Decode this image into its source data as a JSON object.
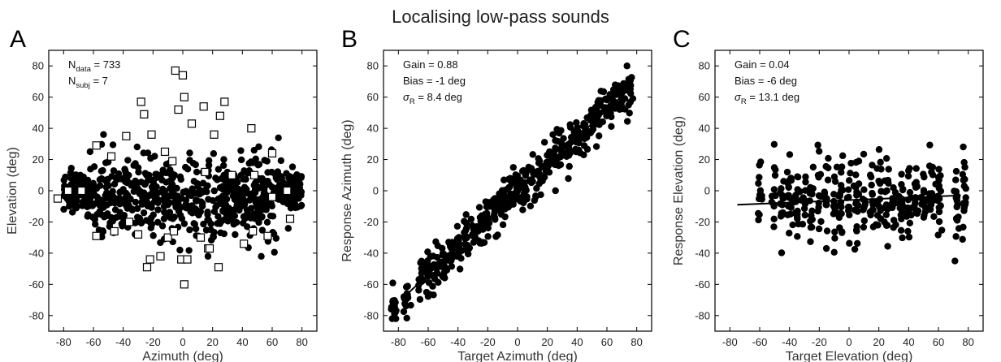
{
  "title": "Localising low-pass sounds",
  "chart_data": [
    {
      "letter": "A",
      "type": "scatter",
      "xlabel": "Azimuth (deg)",
      "ylabel": "Elevation (deg)",
      "xlim": [
        -90,
        90
      ],
      "ylim": [
        -90,
        90
      ],
      "xticks": [
        -80,
        -60,
        -40,
        -20,
        0,
        20,
        40,
        60,
        80
      ],
      "yticks": [
        -80,
        -60,
        -40,
        -20,
        0,
        20,
        40,
        60,
        80
      ],
      "annotations": [
        {
          "base": "N",
          "sub": "data",
          "rest": " = 733"
        },
        {
          "base": "N",
          "sub": "subj",
          "rest": " = 7"
        }
      ],
      "markers": {
        "filled": "filled-circle",
        "open": "open-square"
      },
      "series_filled_summary": {
        "n": 733,
        "x_range": [
          -80,
          80
        ],
        "y_center": -5
      },
      "open_points": [
        [
          -84,
          -5
        ],
        [
          -77,
          0
        ],
        [
          -68,
          0
        ],
        [
          -58,
          29
        ],
        [
          -58,
          -29
        ],
        [
          -48,
          22
        ],
        [
          -46,
          -26
        ],
        [
          -38,
          35
        ],
        [
          -36,
          -20
        ],
        [
          -30,
          -28
        ],
        [
          -28,
          57
        ],
        [
          -26,
          49
        ],
        [
          -24,
          -49
        ],
        [
          -22,
          -44
        ],
        [
          -21,
          36
        ],
        [
          -15,
          -42
        ],
        [
          -12,
          25
        ],
        [
          -10,
          -30
        ],
        [
          -7,
          19
        ],
        [
          -6,
          -26
        ],
        [
          -5,
          77
        ],
        [
          -3,
          52
        ],
        [
          -1,
          -44
        ],
        [
          0,
          74
        ],
        [
          1,
          60
        ],
        [
          1,
          -60
        ],
        [
          3,
          -44
        ],
        [
          6,
          43
        ],
        [
          12,
          -30
        ],
        [
          14,
          54
        ],
        [
          15,
          12
        ],
        [
          17,
          -37
        ],
        [
          18,
          -37
        ],
        [
          21,
          36
        ],
        [
          24,
          -49
        ],
        [
          25,
          48
        ],
        [
          28,
          57
        ],
        [
          33,
          10
        ],
        [
          41,
          -34
        ],
        [
          46,
          40
        ],
        [
          47,
          -26
        ],
        [
          48,
          10
        ],
        [
          57,
          -29
        ],
        [
          60,
          24
        ],
        [
          60,
          -4
        ],
        [
          70,
          0
        ],
        [
          72,
          -18
        ]
      ]
    },
    {
      "letter": "B",
      "type": "scatter",
      "xlabel": "Target Azimuth (deg)",
      "ylabel": "Response Azimuth (deg)",
      "xlim": [
        -90,
        90
      ],
      "ylim": [
        -90,
        90
      ],
      "xticks": [
        -80,
        -60,
        -40,
        -20,
        0,
        20,
        40,
        60,
        80
      ],
      "yticks": [
        -80,
        -60,
        -40,
        -20,
        0,
        20,
        40,
        60,
        80
      ],
      "annotations": [
        {
          "text": "Gain = 0.88"
        },
        {
          "text": "Bias = -1 deg"
        },
        {
          "sigma": "σ",
          "sub": "R",
          "rest": " = 8.4 deg"
        }
      ],
      "columns_x": [
        -83,
        -75,
        -65,
        -60,
        -55,
        -50,
        -45,
        -40,
        -35,
        -30,
        -25,
        -20,
        -15,
        -10,
        -5,
        0,
        5,
        10,
        15,
        20,
        25,
        30,
        35,
        40,
        45,
        50,
        55,
        60,
        65,
        70,
        75
      ],
      "fit": {
        "gain": 0.88,
        "bias": -1,
        "x_range": [
          -75,
          75
        ]
      }
    },
    {
      "letter": "C",
      "type": "scatter",
      "xlabel": "Target Elevation (deg)",
      "ylabel": "Response Elevation (deg)",
      "xlim": [
        -90,
        90
      ],
      "ylim": [
        -90,
        90
      ],
      "xticks": [
        -80,
        -60,
        -40,
        -20,
        0,
        20,
        40,
        60,
        80
      ],
      "yticks": [
        -80,
        -60,
        -40,
        -20,
        0,
        20,
        40,
        60,
        80
      ],
      "annotations": [
        {
          "text": "Gain = 0.04"
        },
        {
          "text": "Bias = -6 deg"
        },
        {
          "sigma": "σ",
          "sub": "R",
          "rest": " = 13.1 deg"
        }
      ],
      "columns_x": [
        -60,
        -50,
        -45,
        -40,
        -35,
        -30,
        -25,
        -20,
        -15,
        -10,
        -5,
        0,
        5,
        10,
        15,
        20,
        25,
        30,
        35,
        40,
        45,
        50,
        55,
        60,
        72,
        77
      ],
      "fit": {
        "gain": 0.04,
        "bias": -6,
        "x_range": [
          -75,
          75
        ]
      }
    }
  ]
}
